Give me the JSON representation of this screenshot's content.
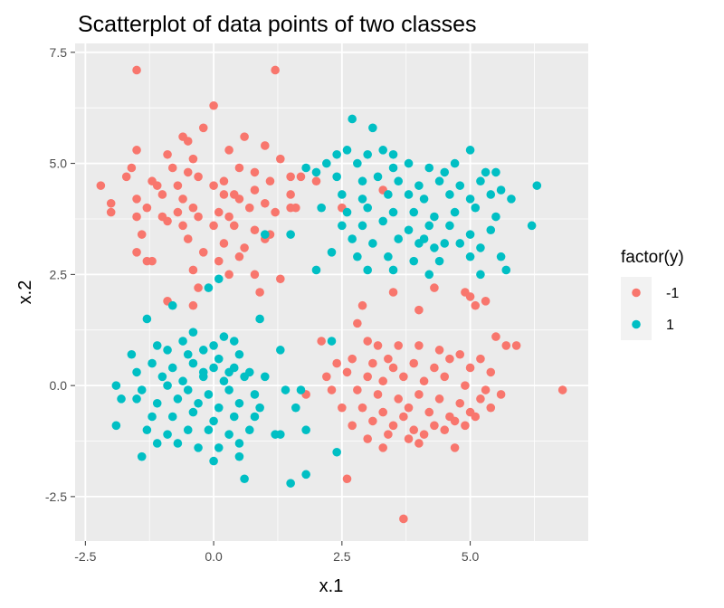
{
  "chart_data": {
    "type": "scatter",
    "title": "Scatterplot of data points of two classes",
    "xlabel": "x.1",
    "ylabel": "x.2",
    "xlim": [
      -2.7,
      7.3
    ],
    "ylim": [
      -3.5,
      7.7
    ],
    "x_ticks": [
      -2.5,
      0.0,
      2.5,
      5.0
    ],
    "x_tick_labels": [
      "-2.5",
      "0.0",
      "2.5",
      "5.0"
    ],
    "y_ticks": [
      -2.5,
      0.0,
      2.5,
      5.0,
      7.5
    ],
    "y_tick_labels": [
      "-2.5",
      "0.0",
      "2.5",
      "5.0",
      "7.5"
    ],
    "grid": true,
    "legend": {
      "title": "factor(y)",
      "position": "right"
    },
    "series": [
      {
        "name": "-1",
        "color": "#F8766D",
        "points": [
          [
            -1.5,
            7.1
          ],
          [
            1.2,
            7.1
          ],
          [
            0.0,
            6.3
          ],
          [
            -0.2,
            5.8
          ],
          [
            -0.6,
            5.6
          ],
          [
            -0.5,
            5.5
          ],
          [
            0.6,
            5.6
          ],
          [
            1.0,
            5.4
          ],
          [
            -1.5,
            5.3
          ],
          [
            -0.9,
            5.2
          ],
          [
            -0.4,
            5.1
          ],
          [
            0.3,
            5.3
          ],
          [
            -0.8,
            4.9
          ],
          [
            -0.5,
            4.8
          ],
          [
            -1.6,
            4.9
          ],
          [
            0.5,
            4.9
          ],
          [
            1.3,
            5.1
          ],
          [
            0.8,
            4.8
          ],
          [
            -1.2,
            4.6
          ],
          [
            -0.3,
            4.7
          ],
          [
            0.2,
            4.6
          ],
          [
            1.1,
            4.6
          ],
          [
            -2.2,
            4.5
          ],
          [
            -1.7,
            4.7
          ],
          [
            -1.1,
            4.5
          ],
          [
            -0.7,
            4.5
          ],
          [
            0.0,
            4.5
          ],
          [
            0.4,
            4.3
          ],
          [
            0.8,
            4.4
          ],
          [
            1.5,
            4.7
          ],
          [
            1.7,
            4.7
          ],
          [
            2.0,
            4.6
          ],
          [
            -2.0,
            4.1
          ],
          [
            -1.5,
            4.2
          ],
          [
            -1.0,
            4.3
          ],
          [
            -0.6,
            4.2
          ],
          [
            0.2,
            4.3
          ],
          [
            0.5,
            4.2
          ],
          [
            1.0,
            4.1
          ],
          [
            1.5,
            4.3
          ],
          [
            -2.0,
            3.9
          ],
          [
            -1.3,
            4.0
          ],
          [
            -1.0,
            3.8
          ],
          [
            -0.7,
            3.9
          ],
          [
            -0.4,
            4.0
          ],
          [
            0.1,
            3.9
          ],
          [
            0.3,
            3.8
          ],
          [
            0.7,
            4.0
          ],
          [
            1.2,
            3.9
          ],
          [
            1.6,
            4.0
          ],
          [
            -1.5,
            3.8
          ],
          [
            -0.9,
            3.7
          ],
          [
            -0.6,
            3.6
          ],
          [
            -0.3,
            3.8
          ],
          [
            0.0,
            3.6
          ],
          [
            0.4,
            3.6
          ],
          [
            0.8,
            3.5
          ],
          [
            1.1,
            3.4
          ],
          [
            -1.4,
            3.4
          ],
          [
            -0.5,
            3.3
          ],
          [
            0.2,
            3.2
          ],
          [
            0.6,
            3.1
          ],
          [
            -1.5,
            3.0
          ],
          [
            -0.2,
            3.0
          ],
          [
            1.0,
            3.3
          ],
          [
            -1.3,
            2.8
          ],
          [
            -1.2,
            2.8
          ],
          [
            0.1,
            2.8
          ],
          [
            0.5,
            2.9
          ],
          [
            -0.4,
            2.6
          ],
          [
            0.3,
            2.5
          ],
          [
            -0.3,
            2.2
          ],
          [
            0.8,
            2.5
          ],
          [
            1.3,
            2.4
          ],
          [
            -0.9,
            1.9
          ],
          [
            -0.4,
            1.8
          ],
          [
            0.9,
            2.1
          ],
          [
            1.5,
            4.0
          ],
          [
            2.5,
            4.0
          ],
          [
            3.3,
            4.4
          ],
          [
            4.9,
            2.1
          ],
          [
            5.7,
            0.9
          ],
          [
            5.9,
            0.9
          ],
          [
            6.8,
            -0.1
          ],
          [
            2.6,
            -2.1
          ],
          [
            3.7,
            -3.0
          ],
          [
            5.0,
            2.0
          ],
          [
            5.3,
            1.9
          ],
          [
            5.5,
            1.1
          ],
          [
            4.3,
            2.2
          ],
          [
            4.0,
            1.7
          ],
          [
            3.5,
            2.1
          ],
          [
            2.9,
            1.8
          ],
          [
            2.8,
            1.4
          ],
          [
            2.1,
            1.0
          ],
          [
            3.0,
            1.0
          ],
          [
            3.2,
            0.9
          ],
          [
            3.6,
            0.9
          ],
          [
            4.0,
            0.9
          ],
          [
            4.4,
            0.8
          ],
          [
            4.8,
            0.7
          ],
          [
            5.2,
            0.6
          ],
          [
            2.4,
            0.5
          ],
          [
            2.7,
            0.6
          ],
          [
            3.1,
            0.5
          ],
          [
            3.4,
            0.6
          ],
          [
            3.9,
            0.5
          ],
          [
            4.3,
            0.4
          ],
          [
            4.6,
            0.6
          ],
          [
            5.0,
            0.4
          ],
          [
            5.4,
            0.3
          ],
          [
            2.6,
            0.3
          ],
          [
            3.0,
            0.2
          ],
          [
            3.3,
            0.1
          ],
          [
            3.7,
            0.2
          ],
          [
            4.1,
            0.1
          ],
          [
            4.5,
            0.2
          ],
          [
            4.9,
            0.0
          ],
          [
            5.3,
            -0.1
          ],
          [
            1.8,
            -0.2
          ],
          [
            2.3,
            -0.1
          ],
          [
            2.8,
            -0.1
          ],
          [
            3.2,
            -0.2
          ],
          [
            3.6,
            -0.3
          ],
          [
            4.0,
            -0.2
          ],
          [
            4.4,
            -0.3
          ],
          [
            4.8,
            -0.4
          ],
          [
            5.2,
            -0.3
          ],
          [
            5.6,
            -0.2
          ],
          [
            2.5,
            -0.5
          ],
          [
            2.9,
            -0.5
          ],
          [
            3.3,
            -0.6
          ],
          [
            3.8,
            -0.5
          ],
          [
            4.2,
            -0.6
          ],
          [
            4.6,
            -0.7
          ],
          [
            5.0,
            -0.6
          ],
          [
            5.4,
            -0.5
          ],
          [
            2.7,
            -0.9
          ],
          [
            3.1,
            -0.8
          ],
          [
            3.5,
            -0.9
          ],
          [
            3.9,
            -1.0
          ],
          [
            4.3,
            -0.9
          ],
          [
            4.7,
            -0.8
          ],
          [
            5.1,
            -0.7
          ],
          [
            3.0,
            -1.2
          ],
          [
            3.4,
            -1.1
          ],
          [
            3.8,
            -1.2
          ],
          [
            4.1,
            -1.1
          ],
          [
            4.5,
            -1.0
          ],
          [
            3.3,
            -1.4
          ],
          [
            4.0,
            -1.3
          ],
          [
            4.7,
            -1.4
          ],
          [
            3.7,
            -0.7
          ],
          [
            4.9,
            -0.9
          ],
          [
            2.2,
            0.2
          ],
          [
            5.1,
            1.8
          ],
          [
            3.5,
            0.4
          ]
        ]
      },
      {
        "name": "1",
        "color": "#00BFC4",
        "points": [
          [
            2.7,
            6.0
          ],
          [
            3.1,
            5.8
          ],
          [
            2.6,
            5.3
          ],
          [
            3.0,
            5.2
          ],
          [
            3.3,
            5.3
          ],
          [
            3.5,
            5.2
          ],
          [
            5.0,
            5.3
          ],
          [
            2.4,
            5.2
          ],
          [
            2.2,
            5.0
          ],
          [
            2.8,
            5.0
          ],
          [
            3.5,
            4.9
          ],
          [
            3.8,
            5.0
          ],
          [
            4.2,
            4.9
          ],
          [
            4.5,
            4.8
          ],
          [
            4.7,
            5.0
          ],
          [
            5.3,
            4.8
          ],
          [
            5.5,
            4.8
          ],
          [
            1.8,
            4.9
          ],
          [
            2.0,
            4.8
          ],
          [
            2.4,
            4.7
          ],
          [
            2.9,
            4.6
          ],
          [
            3.2,
            4.7
          ],
          [
            3.6,
            4.6
          ],
          [
            4.0,
            4.5
          ],
          [
            4.4,
            4.6
          ],
          [
            4.8,
            4.5
          ],
          [
            5.2,
            4.6
          ],
          [
            5.6,
            4.4
          ],
          [
            6.3,
            4.5
          ],
          [
            2.5,
            4.3
          ],
          [
            2.9,
            4.2
          ],
          [
            3.4,
            4.3
          ],
          [
            3.8,
            4.3
          ],
          [
            4.1,
            4.2
          ],
          [
            4.6,
            4.3
          ],
          [
            5.0,
            4.2
          ],
          [
            5.4,
            4.3
          ],
          [
            5.8,
            4.2
          ],
          [
            2.1,
            4.0
          ],
          [
            2.6,
            3.9
          ],
          [
            3.0,
            4.0
          ],
          [
            3.5,
            3.9
          ],
          [
            3.9,
            3.9
          ],
          [
            4.3,
            3.8
          ],
          [
            4.7,
            3.9
          ],
          [
            5.1,
            4.0
          ],
          [
            5.5,
            3.8
          ],
          [
            2.5,
            3.6
          ],
          [
            2.9,
            3.6
          ],
          [
            3.3,
            3.7
          ],
          [
            3.8,
            3.5
          ],
          [
            4.2,
            3.6
          ],
          [
            4.6,
            3.6
          ],
          [
            5.0,
            3.4
          ],
          [
            5.4,
            3.5
          ],
          [
            6.2,
            3.6
          ],
          [
            2.7,
            3.3
          ],
          [
            3.1,
            3.2
          ],
          [
            3.6,
            3.3
          ],
          [
            4.0,
            3.2
          ],
          [
            4.3,
            3.1
          ],
          [
            4.8,
            3.2
          ],
          [
            5.2,
            3.1
          ],
          [
            2.3,
            3.0
          ],
          [
            2.8,
            2.9
          ],
          [
            3.4,
            2.9
          ],
          [
            3.9,
            2.8
          ],
          [
            4.4,
            2.8
          ],
          [
            5.0,
            2.9
          ],
          [
            5.6,
            2.9
          ],
          [
            2.0,
            2.6
          ],
          [
            3.0,
            2.6
          ],
          [
            3.5,
            2.6
          ],
          [
            4.2,
            2.5
          ],
          [
            5.2,
            2.5
          ],
          [
            5.7,
            2.6
          ],
          [
            1.0,
            3.4
          ],
          [
            1.5,
            3.4
          ],
          [
            4.5,
            3.2
          ],
          [
            4.1,
            3.3
          ],
          [
            0.1,
            2.4
          ],
          [
            -0.1,
            2.2
          ],
          [
            -1.3,
            1.5
          ],
          [
            -0.8,
            1.8
          ],
          [
            0.9,
            1.5
          ],
          [
            -0.4,
            1.2
          ],
          [
            0.2,
            1.1
          ],
          [
            -0.6,
            1.0
          ],
          [
            0.0,
            0.9
          ],
          [
            0.4,
            1.0
          ],
          [
            -1.1,
            0.9
          ],
          [
            -0.9,
            0.8
          ],
          [
            -0.5,
            0.7
          ],
          [
            -0.2,
            0.8
          ],
          [
            0.1,
            0.6
          ],
          [
            0.5,
            0.7
          ],
          [
            1.3,
            0.8
          ],
          [
            -1.6,
            0.7
          ],
          [
            -1.2,
            0.5
          ],
          [
            -0.8,
            0.4
          ],
          [
            -0.4,
            0.5
          ],
          [
            0.0,
            0.4
          ],
          [
            0.4,
            0.4
          ],
          [
            0.7,
            0.3
          ],
          [
            -1.5,
            0.3
          ],
          [
            -1.0,
            0.2
          ],
          [
            -0.6,
            0.1
          ],
          [
            -0.2,
            0.2
          ],
          [
            0.2,
            0.1
          ],
          [
            0.6,
            0.2
          ],
          [
            1.0,
            0.2
          ],
          [
            -1.9,
            0.0
          ],
          [
            -1.4,
            -0.1
          ],
          [
            -0.9,
            0.0
          ],
          [
            -0.5,
            -0.1
          ],
          [
            -0.1,
            -0.2
          ],
          [
            0.3,
            -0.1
          ],
          [
            0.8,
            -0.2
          ],
          [
            1.4,
            -0.1
          ],
          [
            -1.8,
            -0.3
          ],
          [
            -1.5,
            -0.3
          ],
          [
            -1.1,
            -0.4
          ],
          [
            -0.7,
            -0.3
          ],
          [
            -0.3,
            -0.4
          ],
          [
            0.1,
            -0.5
          ],
          [
            0.5,
            -0.4
          ],
          [
            0.9,
            -0.5
          ],
          [
            -1.2,
            -0.7
          ],
          [
            -0.8,
            -0.7
          ],
          [
            -0.4,
            -0.6
          ],
          [
            0.0,
            -0.8
          ],
          [
            0.4,
            -0.7
          ],
          [
            0.8,
            -0.7
          ],
          [
            -1.9,
            -0.9
          ],
          [
            -1.3,
            -1.0
          ],
          [
            -0.9,
            -1.1
          ],
          [
            -0.5,
            -1.0
          ],
          [
            -0.1,
            -1.0
          ],
          [
            0.3,
            -1.1
          ],
          [
            0.7,
            -1.0
          ],
          [
            -1.1,
            -1.3
          ],
          [
            -0.7,
            -1.3
          ],
          [
            -0.3,
            -1.4
          ],
          [
            0.1,
            -1.4
          ],
          [
            0.5,
            -1.3
          ],
          [
            1.2,
            -1.1
          ],
          [
            -1.4,
            -1.6
          ],
          [
            0.0,
            -1.7
          ],
          [
            0.5,
            -1.6
          ],
          [
            1.8,
            -1.0
          ],
          [
            1.6,
            -0.5
          ],
          [
            1.7,
            -0.1
          ],
          [
            0.6,
            -2.1
          ],
          [
            1.5,
            -2.2
          ],
          [
            1.8,
            -2.0
          ],
          [
            2.4,
            -1.5
          ],
          [
            2.3,
            1.0
          ],
          [
            1.3,
            -1.1
          ],
          [
            -0.2,
            0.3
          ],
          [
            0.3,
            0.3
          ]
        ]
      }
    ]
  }
}
